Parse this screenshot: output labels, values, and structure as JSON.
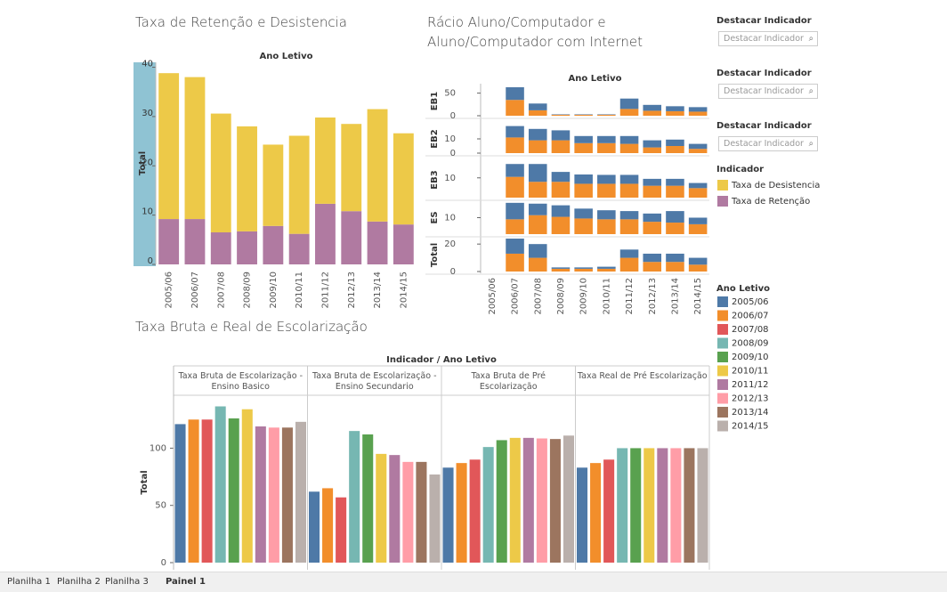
{
  "chart_data": [
    {
      "type": "bar",
      "title": "Taxa de Retenção e Desistencia",
      "header": "Ano Letivo",
      "ylabel": "Total",
      "categories": [
        "2005/06",
        "2006/07",
        "2007/08",
        "2008/09",
        "2009/10",
        "2010/11",
        "2011/12",
        "2012/13",
        "2013/14",
        "2014/15"
      ],
      "series": [
        {
          "name": "Taxa de Retenção",
          "color": "#b07aa1",
          "values": [
            9.2,
            9.2,
            6.5,
            6.7,
            7.8,
            6.2,
            12.3,
            10.8,
            8.7,
            8.1
          ]
        },
        {
          "name": "Taxa de Desistencia",
          "color": "#edc948",
          "values": [
            29.6,
            28.8,
            24.1,
            21.3,
            16.5,
            19.9,
            17.5,
            17.7,
            22.8,
            18.5
          ]
        }
      ],
      "ylim": [
        0,
        41
      ],
      "yticks": [
        0,
        10,
        20,
        30,
        40
      ],
      "legend_title": "Indicador"
    },
    {
      "type": "bar",
      "title": "Rácio Aluno/Computador e Aluno/Computador com Internet",
      "header": "Ano Letivo",
      "categories": [
        "2005/06",
        "2006/07",
        "2007/08",
        "2008/09",
        "2009/10",
        "2010/11",
        "2011/12",
        "2012/13",
        "2013/14",
        "2014/15"
      ],
      "colors": [
        "#f28e2b",
        "#4e79a7"
      ],
      "rows": [
        {
          "label": "EB1",
          "ylim": [
            0,
            65
          ],
          "yticks": [
            0,
            50
          ],
          "series": [
            [
              null,
              35,
              12,
              2,
              2,
              2,
              15,
              11,
              10,
              9
            ],
            [
              null,
              28,
              15,
              1,
              1,
              1,
              23,
              13,
              11,
              10
            ]
          ]
        },
        {
          "label": "EB2",
          "ylim": [
            0,
            20
          ],
          "yticks": [
            0,
            10
          ],
          "series": [
            [
              null,
              11,
              9,
              9,
              7,
              7,
              6.5,
              4,
              5,
              3
            ],
            [
              null,
              8,
              8,
              7,
              5,
              5,
              5.5,
              5,
              4.5,
              3.5
            ]
          ]
        },
        {
          "label": "EB3",
          "ylim": [
            0,
            18
          ],
          "yticks": [
            10
          ],
          "series": [
            [
              null,
              10.5,
              8,
              8,
              7,
              7,
              7,
              6,
              6,
              4.8
            ],
            [
              null,
              6.5,
              9,
              5,
              4.7,
              4.5,
              4.5,
              3.5,
              3.5,
              2.6
            ]
          ]
        },
        {
          "label": "ES",
          "ylim": [
            0,
            20
          ],
          "yticks": [
            10
          ],
          "series": [
            [
              null,
              9,
              11.5,
              10.5,
              9.5,
              9,
              9,
              7.5,
              7,
              6
            ],
            [
              null,
              10,
              7,
              7,
              6,
              5.5,
              5,
              5,
              7,
              4
            ]
          ]
        },
        {
          "label": "Total",
          "ylim": [
            0,
            24
          ],
          "yticks": [
            0,
            20
          ],
          "series": [
            [
              null,
              13,
              10,
              2,
              2,
              2,
              10,
              7,
              7,
              5
            ],
            [
              null,
              11,
              10,
              1,
              1,
              1.5,
              6,
              6,
              6,
              5
            ]
          ]
        }
      ]
    },
    {
      "type": "bar",
      "title": "Taxa Bruta e Real de Escolarização",
      "header": "Indicador / Ano Letivo",
      "ylabel": "Total",
      "categories": [
        "2005/06",
        "2006/07",
        "2007/08",
        "2008/09",
        "2009/10",
        "2010/11",
        "2011/12",
        "2012/13",
        "2013/14",
        "2014/15"
      ],
      "colors": [
        "#4e79a7",
        "#f28e2b",
        "#e15759",
        "#76b7b2",
        "#59a14f",
        "#edc948",
        "#b07aa1",
        "#ff9da7",
        "#9c755f",
        "#bab0ac"
      ],
      "legend_title": "Ano Letivo",
      "panels": [
        {
          "name": "Taxa Bruta de Escolarização - Ensino Basico",
          "values": [
            121,
            125,
            125,
            136.5,
            126,
            134,
            119,
            118,
            118,
            123
          ]
        },
        {
          "name": "Taxa Bruta de Escolarização - Ensino Secundario",
          "values": [
            62,
            65,
            57,
            115,
            112,
            95,
            94,
            88,
            88,
            77
          ]
        },
        {
          "name": "Taxa Bruta de Pré Escolarização",
          "values": [
            83,
            87,
            90,
            101,
            107,
            109,
            109,
            108.5,
            108,
            111
          ]
        },
        {
          "name": "Taxa Real de Pré Escolarização",
          "values": [
            83,
            87,
            90,
            100,
            100,
            100,
            100,
            100,
            100,
            100
          ]
        }
      ],
      "ylim": [
        0,
        140
      ],
      "yticks": [
        0,
        50,
        100
      ]
    }
  ],
  "filters": [
    {
      "title": "Destacar Indicador",
      "placeholder": "Destacar Indicador"
    },
    {
      "title": "Destacar Indicador",
      "placeholder": "Destacar Indicador"
    },
    {
      "title": "Destacar Indicador",
      "placeholder": "Destacar Indicador"
    }
  ],
  "tabs": [
    "Planilha 1",
    "Planilha 2",
    "Planilha 3",
    "Painel 1"
  ]
}
